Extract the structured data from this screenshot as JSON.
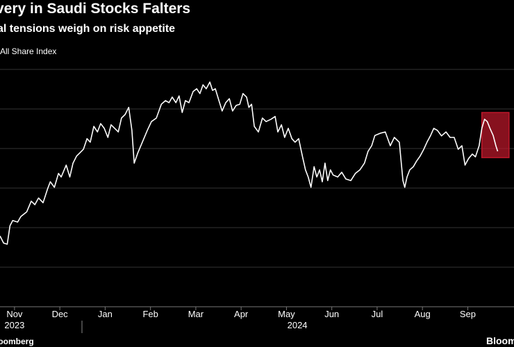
{
  "chart_data": {
    "type": "line",
    "title": "very in Saudi Stocks Falters",
    "subtitle": "al tensions weigh on risk appetite",
    "source": "loomberg",
    "brand": "Bloom",
    "series": [
      {
        "name": "All Share Index",
        "color": "#ffffff",
        "x": [
          0.18,
          0.26,
          0.34,
          0.4,
          0.46,
          0.57,
          0.64,
          0.77,
          0.87,
          0.95,
          1.03,
          1.13,
          1.23,
          1.29,
          1.38,
          1.47,
          1.53,
          1.64,
          1.72,
          1.79,
          1.87,
          1.94,
          2.02,
          2.1,
          2.17,
          2.25,
          2.33,
          2.4,
          2.48,
          2.56,
          2.63,
          2.71,
          2.79,
          2.86,
          2.94,
          3.02,
          3.09,
          3.14,
          3.22,
          3.32,
          3.43,
          3.52,
          3.63,
          3.74,
          3.83,
          3.91,
          3.98,
          4.06,
          4.13,
          4.2,
          4.27,
          4.35,
          4.44,
          4.52,
          4.59,
          4.66,
          4.73,
          4.81,
          4.87,
          4.93,
          5.01,
          5.08,
          5.16,
          5.24,
          5.31,
          5.39,
          5.47,
          5.54,
          5.62,
          5.67,
          5.73,
          5.79,
          5.88,
          5.97,
          6.05,
          6.16,
          6.25,
          6.31,
          6.39,
          6.46,
          6.54,
          6.62,
          6.69,
          6.77,
          6.85,
          6.92,
          6.98,
          7.04,
          7.11,
          7.17,
          7.23,
          7.29,
          7.35,
          7.41,
          7.47,
          7.53,
          7.63,
          7.72,
          7.81,
          7.92,
          8.02,
          8.12,
          8.22,
          8.3,
          8.38,
          8.45,
          8.58,
          8.68,
          8.79,
          8.88,
          8.99,
          9.07,
          9.11,
          9.16,
          9.22,
          9.3,
          9.37,
          9.45,
          9.53,
          9.6,
          9.68,
          9.75,
          9.83,
          9.92,
          10.02,
          10.11,
          10.2,
          10.29,
          10.37,
          10.44,
          10.52,
          10.6,
          10.67,
          10.75,
          10.81,
          10.87,
          10.93,
          10.99,
          11.06,
          11.12,
          11.16
        ],
        "values": [
          1.79,
          1.61,
          1.58,
          2.05,
          2.18,
          2.14,
          2.28,
          2.4,
          2.67,
          2.58,
          2.75,
          2.63,
          2.98,
          3.16,
          3.02,
          3.37,
          3.28,
          3.58,
          3.28,
          3.63,
          3.81,
          3.89,
          3.98,
          4.25,
          4.16,
          4.56,
          4.42,
          4.63,
          4.51,
          4.28,
          4.6,
          4.51,
          4.42,
          4.77,
          4.86,
          5.04,
          4.46,
          3.63,
          3.89,
          4.16,
          4.46,
          4.68,
          4.77,
          5.12,
          5.21,
          5.16,
          5.3,
          5.16,
          5.33,
          4.91,
          5.21,
          5.16,
          5.44,
          5.51,
          5.39,
          5.61,
          5.51,
          5.68,
          5.47,
          5.51,
          5.21,
          4.95,
          5.16,
          5.26,
          4.95,
          5.09,
          5.12,
          5.39,
          5.3,
          5.04,
          5.12,
          4.56,
          4.42,
          4.77,
          4.68,
          4.74,
          4.81,
          4.42,
          4.6,
          4.28,
          4.51,
          4.25,
          4.16,
          4.25,
          3.81,
          3.46,
          3.28,
          3.02,
          3.54,
          3.28,
          3.46,
          3.16,
          3.63,
          3.19,
          3.46,
          3.33,
          3.28,
          3.4,
          3.23,
          3.19,
          3.37,
          3.46,
          3.63,
          3.93,
          4.07,
          4.33,
          4.39,
          4.42,
          4.07,
          4.28,
          4.16,
          3.19,
          3.02,
          3.28,
          3.46,
          3.54,
          3.68,
          3.81,
          3.98,
          4.16,
          4.33,
          4.51,
          4.46,
          4.32,
          4.42,
          4.28,
          4.28,
          3.98,
          4.07,
          3.58,
          3.75,
          3.86,
          3.79,
          4.07,
          4.51,
          4.74,
          4.68,
          4.51,
          4.33,
          4.07,
          3.93
        ]
      }
    ],
    "xlim": [
      0.18,
      11.52
    ],
    "ylim": [
      0,
      6.2
    ],
    "yticks": [
      0,
      1,
      2,
      3,
      4,
      5,
      6
    ],
    "grid": true,
    "xticks": [
      {
        "value": 0.5,
        "label": "Nov"
      },
      {
        "value": 1.5,
        "label": "Dec"
      },
      {
        "value": 2.5,
        "label": "Jan"
      },
      {
        "value": 3.5,
        "label": "Feb"
      },
      {
        "value": 4.5,
        "label": "Mar"
      },
      {
        "value": 5.5,
        "label": "Apr"
      },
      {
        "value": 6.5,
        "label": "May"
      },
      {
        "value": 7.5,
        "label": "Jun"
      },
      {
        "value": 8.5,
        "label": "Jul"
      },
      {
        "value": 9.5,
        "label": "Aug"
      },
      {
        "value": 10.5,
        "label": "Sep"
      }
    ],
    "year_ticks": [
      {
        "value": 0.5,
        "label": "2023"
      },
      {
        "value": 6.74,
        "label": "2024"
      }
    ],
    "highlight": {
      "xlim": [
        10.81,
        11.41
      ],
      "ylim": [
        3.77,
        4.91
      ],
      "color": "#c0182b"
    }
  }
}
